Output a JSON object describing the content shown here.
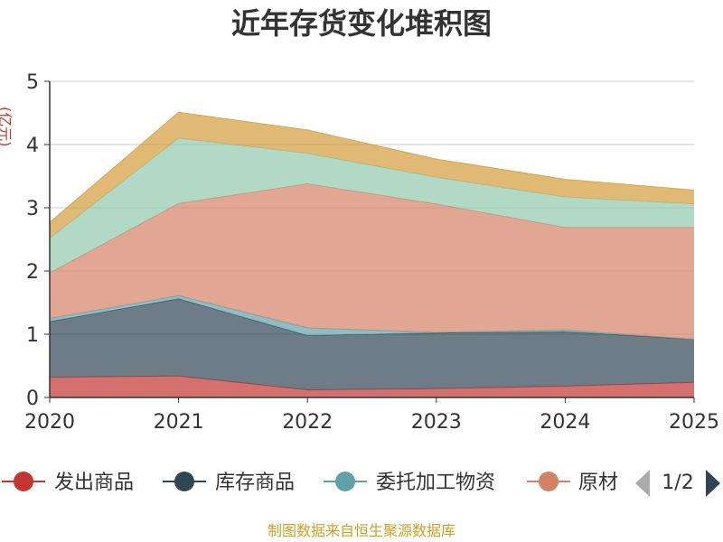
{
  "chart_data": {
    "type": "area",
    "stacked": true,
    "title": "近年存货变化堆积图",
    "x": [
      "2020",
      "2021",
      "2022",
      "2023",
      "2024",
      "2025"
    ],
    "ylim": [
      0,
      5
    ],
    "yticks": [
      "0",
      "1",
      "2",
      "3",
      "4",
      "5"
    ],
    "grid": true,
    "series": [
      {
        "name": "发出商品",
        "color": "#c23531",
        "values": [
          0.32,
          0.34,
          0.12,
          0.14,
          0.18,
          0.24
        ]
      },
      {
        "name": "库存商品",
        "color": "#2f4554",
        "values": [
          0.88,
          1.22,
          0.86,
          0.88,
          0.86,
          0.68
        ]
      },
      {
        "name": "委托加工物资",
        "color": "#61a0a8",
        "values": [
          0.05,
          0.05,
          0.12,
          0.01,
          0.03,
          0.0
        ]
      },
      {
        "name": "原材料",
        "color": "#d48265",
        "values": [
          0.72,
          1.46,
          2.28,
          2.03,
          1.62,
          1.77
        ]
      },
      {
        "name": "",
        "color": "#91c7ae",
        "values": [
          0.55,
          1.03,
          0.48,
          0.42,
          0.48,
          0.37
        ]
      },
      {
        "name": "",
        "color": "#d39b3a",
        "values": [
          0.25,
          0.41,
          0.37,
          0.29,
          0.28,
          0.22
        ]
      }
    ],
    "legend": {
      "position": "bottom",
      "visible_labels": [
        "发出商品",
        "库存商品",
        "委托加工物资",
        "原材"
      ],
      "page": "1/2"
    }
  },
  "source_note": "制图数据来自恒生聚源数据库",
  "y_axis_label": "(亿元)"
}
